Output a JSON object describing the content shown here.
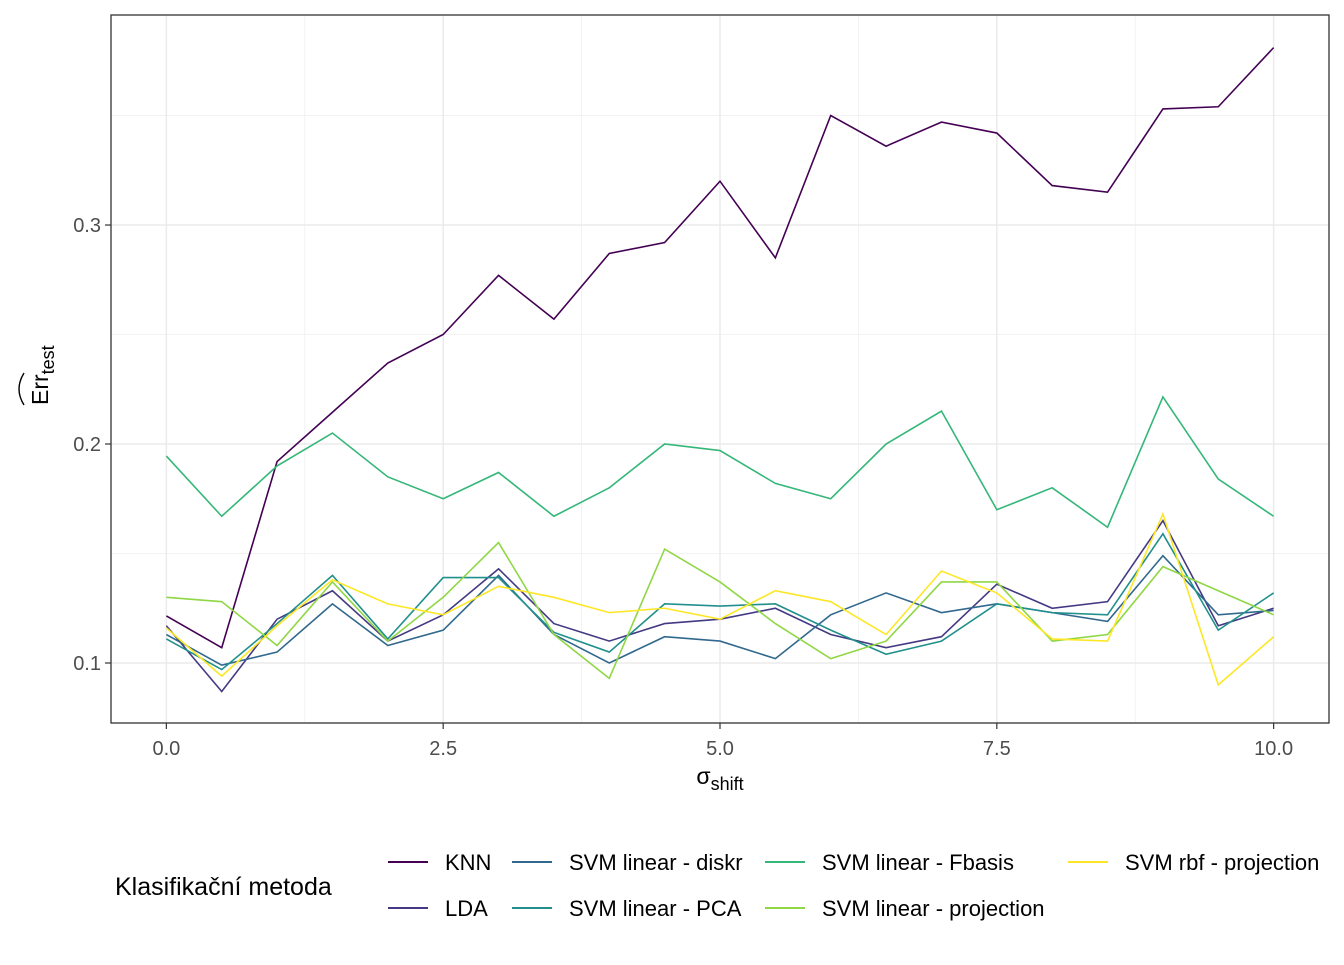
{
  "chart_data": {
    "type": "line",
    "title": "",
    "xlabel": "σ",
    "xlabel_sub": "shift",
    "ylabel": "Err",
    "ylabel_sub": "test",
    "xlim": [
      -0.5,
      10.5
    ],
    "ylim": [
      0.0726,
      0.3959
    ],
    "grid": true,
    "x_ticks": [
      0,
      2.5,
      5,
      7.5,
      10
    ],
    "x_tick_labels": [
      "0.0",
      "2.5",
      "5.0",
      "7.5",
      "10.0"
    ],
    "y_ticks": [
      0.1,
      0.2,
      0.3
    ],
    "y_tick_labels": [
      "0.1",
      "0.2",
      "0.3"
    ],
    "x": [
      0,
      0.5,
      1,
      1.5,
      2,
      2.5,
      3,
      3.5,
      4,
      4.5,
      5,
      5.5,
      6,
      6.5,
      7,
      7.5,
      8,
      8.5,
      9,
      9.5,
      10
    ],
    "legend_title": "Klasifikační metoda",
    "legend_position": "bottom",
    "series": [
      {
        "name": "KNN",
        "color": "#440154",
        "values": [
          0.1215,
          0.107,
          0.192,
          0.2145,
          0.237,
          0.25,
          0.277,
          0.257,
          0.287,
          0.292,
          0.32,
          0.285,
          0.35,
          0.336,
          0.347,
          0.342,
          0.318,
          0.315,
          0.353,
          0.354,
          0.381
        ]
      },
      {
        "name": "LDA",
        "color": "#443A83",
        "values": [
          0.117,
          0.087,
          0.12,
          0.133,
          0.11,
          0.122,
          0.143,
          0.118,
          0.11,
          0.118,
          0.12,
          0.125,
          0.113,
          0.107,
          0.112,
          0.136,
          0.125,
          0.128,
          0.165,
          0.117,
          0.125
        ]
      },
      {
        "name": "SVM linear - diskr",
        "color": "#31688E",
        "values": [
          0.113,
          0.099,
          0.105,
          0.127,
          0.108,
          0.115,
          0.14,
          0.113,
          0.1,
          0.112,
          0.11,
          0.102,
          0.122,
          0.132,
          0.123,
          0.127,
          0.123,
          0.119,
          0.149,
          0.122,
          0.124
        ]
      },
      {
        "name": "SVM linear - PCA",
        "color": "#21908C",
        "values": [
          0.111,
          0.097,
          0.118,
          0.14,
          0.111,
          0.139,
          0.139,
          0.114,
          0.105,
          0.127,
          0.126,
          0.127,
          0.115,
          0.104,
          0.11,
          0.127,
          0.123,
          0.122,
          0.159,
          0.115,
          0.132
        ]
      },
      {
        "name": "SVM linear - Fbasis",
        "color": "#35B779",
        "values": [
          0.1945,
          0.167,
          0.19,
          0.205,
          0.185,
          0.175,
          0.187,
          0.167,
          0.18,
          0.2,
          0.197,
          0.182,
          0.175,
          0.2,
          0.215,
          0.17,
          0.18,
          0.162,
          0.2215,
          0.184,
          0.167
        ]
      },
      {
        "name": "SVM linear - projection",
        "color": "#8FD744",
        "values": [
          0.13,
          0.128,
          0.108,
          0.137,
          0.11,
          0.13,
          0.155,
          0.113,
          0.093,
          0.152,
          0.137,
          0.118,
          0.102,
          0.11,
          0.137,
          0.137,
          0.11,
          0.113,
          0.144,
          0.133,
          0.122
        ]
      },
      {
        "name": "SVM rbf - projection",
        "color": "#FDE725",
        "values": [
          0.116,
          0.094,
          0.117,
          0.138,
          0.127,
          0.122,
          0.135,
          0.13,
          0.123,
          0.125,
          0.12,
          0.133,
          0.128,
          0.113,
          0.142,
          0.132,
          0.111,
          0.11,
          0.168,
          0.09,
          0.112
        ]
      }
    ]
  }
}
